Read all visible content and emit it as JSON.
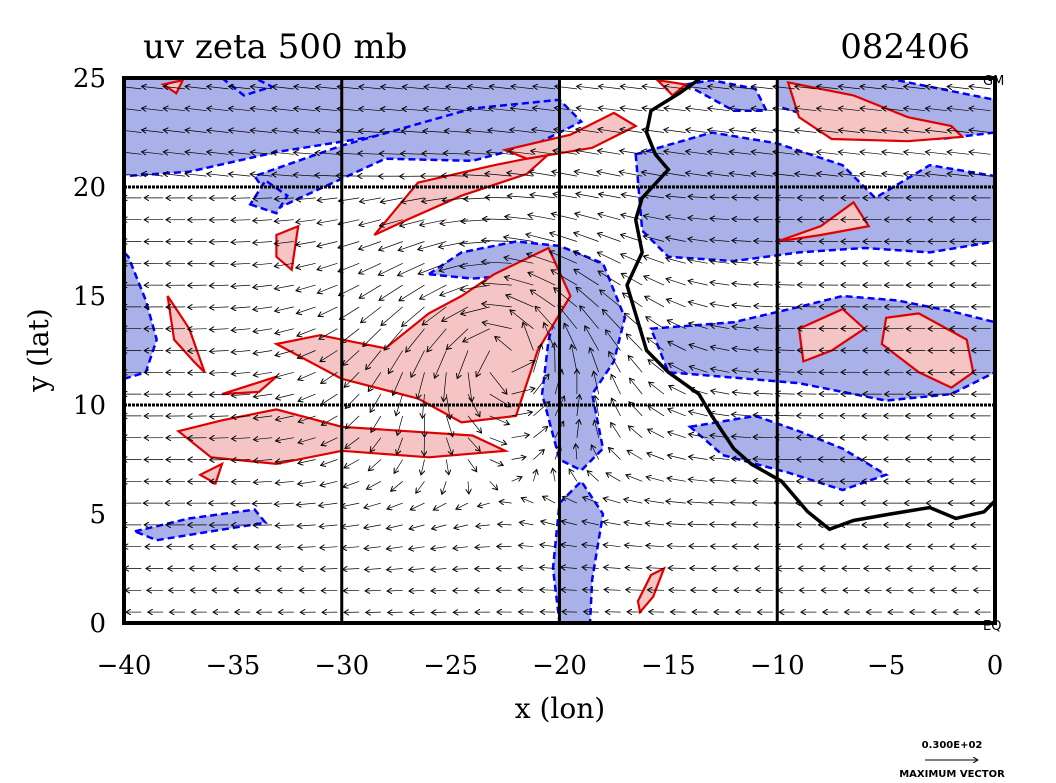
{
  "chart_data": {
    "type": "contour-vector",
    "title": "uv zeta 500 mb",
    "date_code": "082406",
    "xlabel": "x (lon)",
    "ylabel": "y (lat)",
    "xlim": [
      -40,
      0
    ],
    "ylim": [
      0,
      25
    ],
    "x_ticks": [
      -40,
      -35,
      -30,
      -25,
      -20,
      -15,
      -10,
      -5,
      0
    ],
    "y_ticks": [
      0,
      5,
      10,
      15,
      20,
      25
    ],
    "x_tick_labels": [
      "−40",
      "−35",
      "−30",
      "−25",
      "−20",
      "−15",
      "−10",
      "−5",
      "0"
    ],
    "y_tick_labels": [
      "0",
      "5",
      "10",
      "15",
      "20",
      "25"
    ],
    "grid_x": [
      -30,
      -20,
      -10
    ],
    "grid_y": [
      10,
      20
    ],
    "corner_labels": {
      "top_right": "GM",
      "bottom_right": "EQ"
    },
    "reference_vector": {
      "value": "0.300E+02",
      "label": "MAXIMUM VECTOR"
    },
    "colors": {
      "positive_fill": "#f5c4c4",
      "positive_line": "#e00000",
      "negative_fill": "#aab0e8",
      "negative_line": "#0000ff",
      "coastline": "#000000"
    },
    "coastline": [
      [
        -13.5,
        25
      ],
      [
        -14.5,
        24.3
      ],
      [
        -15.8,
        23.5
      ],
      [
        -16.0,
        22.5
      ],
      [
        -15.6,
        21.5
      ],
      [
        -15.0,
        20.8
      ],
      [
        -16.2,
        19.5
      ],
      [
        -16.5,
        18.5
      ],
      [
        -16.2,
        17.0
      ],
      [
        -16.9,
        15.5
      ],
      [
        -16.6,
        14.5
      ],
      [
        -16.0,
        12.5
      ],
      [
        -15.0,
        11.5
      ],
      [
        -13.6,
        10.5
      ],
      [
        -13.0,
        9.5
      ],
      [
        -12.0,
        8.0
      ],
      [
        -11.2,
        7.3
      ],
      [
        -9.8,
        6.5
      ],
      [
        -8.6,
        5.1
      ],
      [
        -7.6,
        4.3
      ],
      [
        -6.5,
        4.7
      ],
      [
        -4.8,
        5.0
      ],
      [
        -3.0,
        5.3
      ],
      [
        -1.8,
        4.8
      ],
      [
        -0.5,
        5.1
      ],
      [
        0,
        5.6
      ]
    ],
    "positive_regions": [
      [
        [
          -23.0,
          16.0
        ],
        [
          -20.5,
          17.2
        ],
        [
          -19.5,
          15.0
        ],
        [
          -21.0,
          12.5
        ],
        [
          -22.0,
          9.5
        ],
        [
          -24.5,
          9.2
        ],
        [
          -26.5,
          10.3
        ],
        [
          -30.0,
          11.2
        ],
        [
          -33.0,
          12.8
        ],
        [
          -31.0,
          13.2
        ],
        [
          -28.0,
          12.6
        ],
        [
          -26.0,
          14.2
        ],
        [
          -24.5,
          15.0
        ]
      ],
      [
        [
          -37.5,
          8.8
        ],
        [
          -35.5,
          9.3
        ],
        [
          -33.0,
          9.8
        ],
        [
          -30.0,
          9.0
        ],
        [
          -27.0,
          8.8
        ],
        [
          -24.0,
          8.6
        ],
        [
          -22.5,
          7.9
        ],
        [
          -26.0,
          7.6
        ],
        [
          -30.0,
          7.9
        ],
        [
          -33.0,
          7.3
        ],
        [
          -36.0,
          7.6
        ]
      ],
      [
        [
          -28.5,
          17.8
        ],
        [
          -26.5,
          20.2
        ],
        [
          -23.0,
          21.0
        ],
        [
          -20.5,
          21.5
        ],
        [
          -21.5,
          20.6
        ],
        [
          -24.5,
          19.6
        ],
        [
          -27.0,
          18.5
        ]
      ],
      [
        [
          -22.5,
          21.7
        ],
        [
          -19.5,
          22.4
        ],
        [
          -17.5,
          23.4
        ],
        [
          -16.5,
          22.8
        ],
        [
          -18.5,
          21.8
        ],
        [
          -21.5,
          21.3
        ]
      ],
      [
        [
          -9.5,
          24.8
        ],
        [
          -6.5,
          24.2
        ],
        [
          -4.0,
          23.2
        ],
        [
          -2.0,
          22.8
        ],
        [
          -1.5,
          22.3
        ],
        [
          -4.0,
          22.1
        ],
        [
          -7.5,
          22.2
        ],
        [
          -9.0,
          23.2
        ]
      ],
      [
        [
          -5.0,
          14.0
        ],
        [
          -3.5,
          14.2
        ],
        [
          -1.3,
          13.0
        ],
        [
          -1.0,
          11.5
        ],
        [
          -2.0,
          10.8
        ],
        [
          -3.5,
          11.5
        ],
        [
          -5.2,
          12.8
        ]
      ],
      [
        [
          -9.0,
          13.5
        ],
        [
          -7.0,
          14.4
        ],
        [
          -6.0,
          13.5
        ],
        [
          -7.5,
          12.5
        ],
        [
          -8.8,
          12.0
        ]
      ],
      [
        [
          -10.0,
          17.5
        ],
        [
          -8.0,
          18.2
        ],
        [
          -6.5,
          19.3
        ],
        [
          -5.8,
          18.2
        ],
        [
          -8.0,
          17.8
        ]
      ],
      [
        [
          -16.3,
          0.5
        ],
        [
          -15.7,
          1.2
        ],
        [
          -15.2,
          2.5
        ],
        [
          -15.8,
          2.2
        ],
        [
          -16.4,
          1.0
        ]
      ],
      [
        [
          -38.0,
          15.0
        ],
        [
          -37.0,
          13.5
        ],
        [
          -36.3,
          11.5
        ],
        [
          -36.8,
          12.0
        ],
        [
          -37.7,
          13.0
        ]
      ],
      [
        [
          -36.5,
          6.8
        ],
        [
          -35.5,
          7.3
        ],
        [
          -35.8,
          6.4
        ]
      ],
      [
        [
          -35.5,
          10.5
        ],
        [
          -33.0,
          11.3
        ],
        [
          -33.8,
          10.6
        ]
      ],
      [
        [
          -33.0,
          17.8
        ],
        [
          -32.0,
          18.2
        ],
        [
          -32.3,
          16.2
        ],
        [
          -33.0,
          16.8
        ]
      ],
      [
        [
          -38.2,
          24.7
        ],
        [
          -37.3,
          24.9
        ],
        [
          -37.6,
          24.3
        ]
      ],
      [
        [
          -15.5,
          24.9
        ],
        [
          -14.2,
          24.7
        ],
        [
          -14.8,
          24.2
        ]
      ]
    ],
    "negative_regions": [
      [
        [
          -40.0,
          25.0
        ],
        [
          -20.0,
          25.0
        ],
        [
          -20.0,
          23.2
        ],
        [
          -24.0,
          23.0
        ],
        [
          -28.0,
          22.4
        ],
        [
          -33.0,
          21.6
        ],
        [
          -37.0,
          20.7
        ],
        [
          -40.0,
          20.5
        ]
      ],
      [
        [
          -33.0,
          19.0
        ],
        [
          -28.0,
          21.3
        ],
        [
          -24.0,
          21.2
        ],
        [
          -21.0,
          22.0
        ],
        [
          -19.0,
          23.0
        ],
        [
          -20.0,
          24.0
        ],
        [
          -24.0,
          23.6
        ],
        [
          -30.0,
          21.9
        ],
        [
          -34.0,
          20.5
        ]
      ],
      [
        [
          -26.0,
          16.0
        ],
        [
          -24.5,
          17.0
        ],
        [
          -22.0,
          17.5
        ],
        [
          -20.0,
          17.3
        ],
        [
          -18.0,
          16.5
        ],
        [
          -17.0,
          14.0
        ],
        [
          -17.5,
          12.0
        ],
        [
          -18.5,
          10.5
        ],
        [
          -18.0,
          8.0
        ],
        [
          -19.0,
          7.0
        ],
        [
          -20.0,
          7.5
        ],
        [
          -20.8,
          10.5
        ],
        [
          -20.5,
          13.0
        ],
        [
          -19.8,
          15.5
        ],
        [
          -21.5,
          16.0
        ],
        [
          -24.0,
          15.8
        ]
      ],
      [
        [
          -20.0,
          5.5
        ],
        [
          -19.0,
          6.5
        ],
        [
          -18.0,
          5.0
        ],
        [
          -18.5,
          2.0
        ],
        [
          -18.6,
          0.0
        ],
        [
          -20.0,
          0.0
        ],
        [
          -20.3,
          2.5
        ]
      ],
      [
        [
          -40.0,
          11.2
        ],
        [
          -39.0,
          11.5
        ],
        [
          -38.5,
          13.0
        ],
        [
          -39.0,
          14.8
        ],
        [
          -39.8,
          16.8
        ],
        [
          -40.0,
          17.0
        ]
      ],
      [
        [
          -16.5,
          21.5
        ],
        [
          -13.0,
          22.5
        ],
        [
          -10.0,
          22.0
        ],
        [
          -7.0,
          21.0
        ],
        [
          -5.5,
          19.5
        ],
        [
          -3.0,
          21.0
        ],
        [
          0.0,
          20.5
        ],
        [
          0.0,
          17.5
        ],
        [
          -3.0,
          17.0
        ],
        [
          -6.0,
          17.2
        ],
        [
          -9.0,
          17.0
        ],
        [
          -12.0,
          16.6
        ],
        [
          -15.0,
          16.8
        ],
        [
          -16.2,
          18.0
        ]
      ],
      [
        [
          -15.8,
          13.5
        ],
        [
          -12.0,
          13.8
        ],
        [
          -9.0,
          14.5
        ],
        [
          -7.0,
          15.0
        ],
        [
          -4.5,
          14.8
        ],
        [
          -2.0,
          14.3
        ],
        [
          0.0,
          13.8
        ],
        [
          0.0,
          11.5
        ],
        [
          -2.0,
          10.5
        ],
        [
          -5.0,
          10.2
        ],
        [
          -9.0,
          11.0
        ],
        [
          -12.5,
          11.3
        ],
        [
          -15.0,
          11.5
        ]
      ],
      [
        [
          -14.0,
          9.0
        ],
        [
          -11.0,
          9.5
        ],
        [
          -9.0,
          8.8
        ],
        [
          -7.0,
          8.0
        ],
        [
          -5.0,
          6.8
        ],
        [
          -7.0,
          6.1
        ],
        [
          -9.5,
          6.9
        ],
        [
          -12.5,
          7.7
        ]
      ],
      [
        [
          -10.0,
          25.0
        ],
        [
          -5.0,
          25.0
        ],
        [
          0.0,
          24.0
        ],
        [
          0.0,
          22.5
        ],
        [
          -2.5,
          22.2
        ],
        [
          -5.0,
          22.7
        ],
        [
          -8.0,
          23.1
        ],
        [
          -10.0,
          23.7
        ]
      ],
      [
        [
          -39.5,
          4.2
        ],
        [
          -37.0,
          4.8
        ],
        [
          -34.0,
          5.2
        ],
        [
          -33.5,
          4.6
        ],
        [
          -36.0,
          4.2
        ],
        [
          -38.5,
          3.8
        ]
      ],
      [
        [
          -14.2,
          24.7
        ],
        [
          -13.0,
          24.9
        ],
        [
          -11.0,
          24.5
        ],
        [
          -10.5,
          23.5
        ],
        [
          -12.0,
          23.5
        ]
      ],
      [
        [
          -34.2,
          19.2
        ],
        [
          -33.0,
          18.8
        ],
        [
          -32.5,
          19.6
        ],
        [
          -33.5,
          20.3
        ]
      ],
      [
        [
          -35.5,
          25.0
        ],
        [
          -34.5,
          24.2
        ],
        [
          -33.2,
          24.6
        ],
        [
          -34.0,
          25.0
        ]
      ]
    ]
  }
}
